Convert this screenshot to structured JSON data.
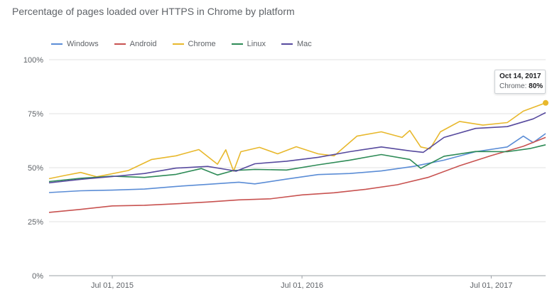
{
  "page_title": "Percentage of pages loaded over HTTPS in Chrome by platform",
  "colors": {
    "Windows": "#5b8dd6",
    "Android": "#c85250",
    "Chrome": "#e8b82c",
    "Linux": "#2e8b57",
    "Mac": "#574a9e"
  },
  "tooltip": {
    "date": "Oct 14, 2017",
    "series": "Chrome:",
    "value": "80%"
  },
  "chart_data": {
    "type": "line",
    "title": "Percentage of pages loaded over HTTPS in Chrome by platform",
    "xlabel": "",
    "ylabel": "",
    "xlim": [
      "2015-03-01",
      "2017-10-14"
    ],
    "ylim": [
      0,
      100
    ],
    "y_ticks": [
      0,
      25,
      50,
      75,
      100
    ],
    "y_tick_labels": [
      "0%",
      "25%",
      "50%",
      "75%",
      "100%"
    ],
    "x_ticks": [
      "2015-07-01",
      "2016-07-01",
      "2017-07-01"
    ],
    "x_tick_labels": [
      "Jul 01, 2015",
      "Jul 01, 2016",
      "Jul 01, 2017"
    ],
    "grid": "horizontal",
    "legend_position": "top-left",
    "series": [
      {
        "name": "Windows",
        "points": [
          [
            "2015-03-01",
            38.5
          ],
          [
            "2015-05-01",
            39.3
          ],
          [
            "2015-07-01",
            39.6
          ],
          [
            "2015-09-01",
            40.1
          ],
          [
            "2015-11-01",
            41.3
          ],
          [
            "2016-01-01",
            42.3
          ],
          [
            "2016-03-01",
            43.3
          ],
          [
            "2016-04-01",
            42.5
          ],
          [
            "2016-06-01",
            44.7
          ],
          [
            "2016-08-01",
            46.8
          ],
          [
            "2016-10-01",
            47.3
          ],
          [
            "2016-12-01",
            48.5
          ],
          [
            "2017-02-01",
            50.6
          ],
          [
            "2017-04-01",
            53.5
          ],
          [
            "2017-06-01",
            57.4
          ],
          [
            "2017-08-01",
            59.6
          ],
          [
            "2017-09-01",
            64.6
          ],
          [
            "2017-09-20",
            61.6
          ],
          [
            "2017-10-14",
            65.8
          ]
        ]
      },
      {
        "name": "Android",
        "points": [
          [
            "2015-03-01",
            29.3
          ],
          [
            "2015-05-01",
            30.7
          ],
          [
            "2015-07-01",
            32.3
          ],
          [
            "2015-09-01",
            32.6
          ],
          [
            "2015-11-01",
            33.3
          ],
          [
            "2016-01-01",
            34.1
          ],
          [
            "2016-03-01",
            35.1
          ],
          [
            "2016-05-01",
            35.6
          ],
          [
            "2016-07-01",
            37.4
          ],
          [
            "2016-09-01",
            38.4
          ],
          [
            "2016-11-01",
            40.0
          ],
          [
            "2017-01-01",
            42.1
          ],
          [
            "2017-03-01",
            45.5
          ],
          [
            "2017-05-01",
            50.9
          ],
          [
            "2017-07-01",
            55.6
          ],
          [
            "2017-09-01",
            59.9
          ],
          [
            "2017-10-14",
            64.0
          ]
        ]
      },
      {
        "name": "Chrome",
        "points": [
          [
            "2015-03-01",
            44.9
          ],
          [
            "2015-04-01",
            46.4
          ],
          [
            "2015-05-01",
            47.8
          ],
          [
            "2015-06-01",
            45.8
          ],
          [
            "2015-08-01",
            48.7
          ],
          [
            "2015-09-15",
            53.8
          ],
          [
            "2015-11-01",
            55.5
          ],
          [
            "2015-12-15",
            58.4
          ],
          [
            "2016-01-20",
            51.6
          ],
          [
            "2016-02-05",
            58.3
          ],
          [
            "2016-02-20",
            48.4
          ],
          [
            "2016-03-05",
            57.4
          ],
          [
            "2016-04-10",
            59.4
          ],
          [
            "2016-05-15",
            56.4
          ],
          [
            "2016-06-20",
            59.7
          ],
          [
            "2016-08-01",
            56.4
          ],
          [
            "2016-09-01",
            55.5
          ],
          [
            "2016-10-15",
            64.6
          ],
          [
            "2016-12-01",
            66.6
          ],
          [
            "2017-01-10",
            64.0
          ],
          [
            "2017-01-25",
            67.2
          ],
          [
            "2017-02-15",
            59.6
          ],
          [
            "2017-03-05",
            58.7
          ],
          [
            "2017-03-25",
            66.6
          ],
          [
            "2017-05-01",
            71.4
          ],
          [
            "2017-06-15",
            69.7
          ],
          [
            "2017-08-01",
            70.9
          ],
          [
            "2017-09-01",
            76.2
          ],
          [
            "2017-10-14",
            80.0
          ]
        ]
      },
      {
        "name": "Linux",
        "points": [
          [
            "2015-03-01",
            43.6
          ],
          [
            "2015-05-01",
            45.1
          ],
          [
            "2015-07-01",
            46.1
          ],
          [
            "2015-09-01",
            45.5
          ],
          [
            "2015-11-01",
            46.9
          ],
          [
            "2015-12-20",
            49.6
          ],
          [
            "2016-01-20",
            46.6
          ],
          [
            "2016-02-20",
            48.7
          ],
          [
            "2016-04-01",
            49.2
          ],
          [
            "2016-06-01",
            48.9
          ],
          [
            "2016-08-01",
            51.3
          ],
          [
            "2016-10-01",
            53.5
          ],
          [
            "2016-12-01",
            56.1
          ],
          [
            "2017-01-25",
            53.8
          ],
          [
            "2017-02-15",
            49.7
          ],
          [
            "2017-04-01",
            55.3
          ],
          [
            "2017-06-01",
            57.5
          ],
          [
            "2017-08-01",
            57.4
          ],
          [
            "2017-09-15",
            58.9
          ],
          [
            "2017-10-14",
            60.6
          ]
        ]
      },
      {
        "name": "Mac",
        "points": [
          [
            "2015-03-01",
            43.0
          ],
          [
            "2015-05-01",
            44.6
          ],
          [
            "2015-07-01",
            45.9
          ],
          [
            "2015-09-01",
            47.3
          ],
          [
            "2015-11-01",
            49.8
          ],
          [
            "2016-01-01",
            50.6
          ],
          [
            "2016-02-10",
            49.0
          ],
          [
            "2016-02-25",
            48.4
          ],
          [
            "2016-04-01",
            51.8
          ],
          [
            "2016-06-01",
            53.0
          ],
          [
            "2016-08-01",
            54.8
          ],
          [
            "2016-10-01",
            57.4
          ],
          [
            "2016-12-01",
            59.6
          ],
          [
            "2017-01-25",
            57.8
          ],
          [
            "2017-02-20",
            57.1
          ],
          [
            "2017-04-01",
            64.0
          ],
          [
            "2017-06-01",
            68.2
          ],
          [
            "2017-08-01",
            69.0
          ],
          [
            "2017-09-20",
            72.6
          ],
          [
            "2017-10-14",
            75.5
          ]
        ]
      }
    ],
    "highlight": {
      "series": "Chrome",
      "x": "2017-10-14",
      "y": 80
    }
  }
}
